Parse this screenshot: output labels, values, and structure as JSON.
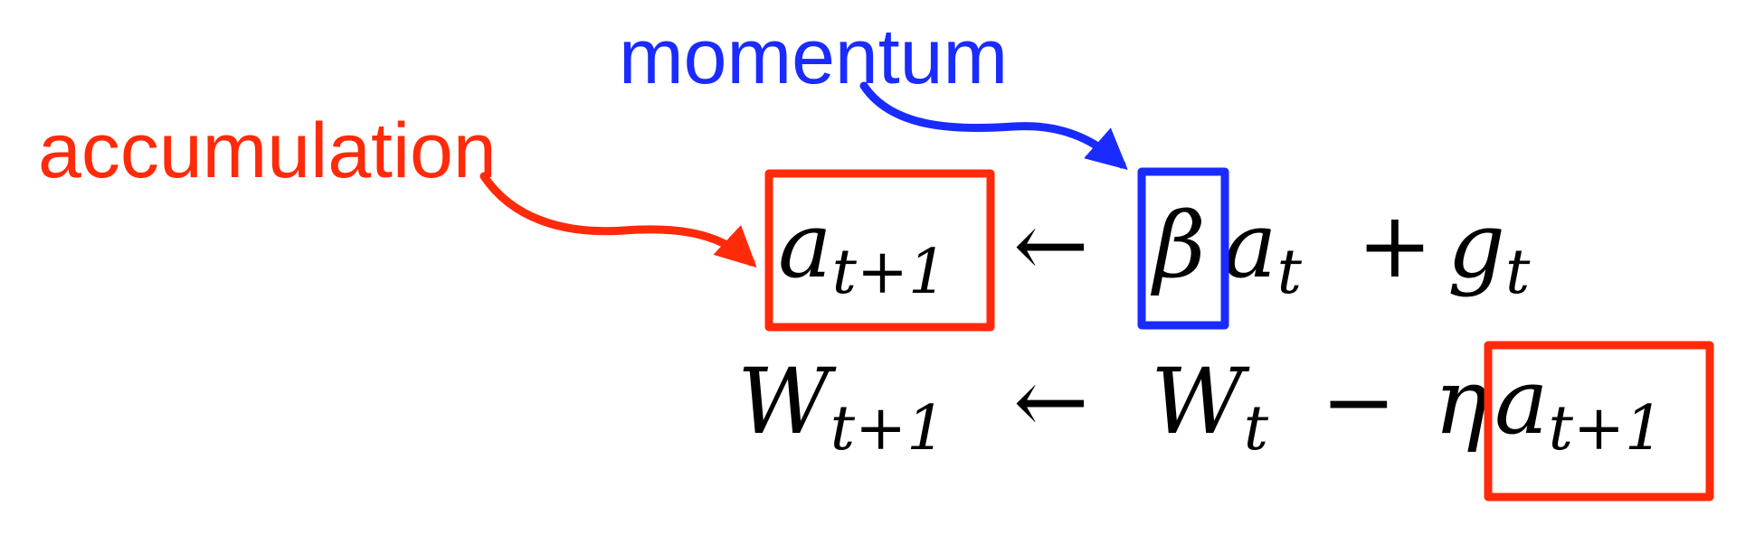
{
  "annotations": {
    "accumulation": {
      "text": "accumulation",
      "color": "#ff2a0a"
    },
    "momentum": {
      "text": "momentum",
      "color": "#1a2bff"
    }
  },
  "equation1": {
    "lhs_var": "a",
    "lhs_sub": "t+1",
    "arrow": "←",
    "coef": "β",
    "term1_var": "a",
    "term1_sub": "t",
    "plus": "+",
    "term2_var": "g",
    "term2_sub": "t"
  },
  "equation2": {
    "lhs_var": "W",
    "lhs_sub": "t+1",
    "arrow": "←",
    "rhs1_var": "W",
    "rhs1_sub": "t",
    "minus": "−",
    "rate": "η",
    "rhs2_var": "a",
    "rhs2_sub": "t+1"
  },
  "colors": {
    "accumulation": "#ff2a0a",
    "momentum": "#1a2bff",
    "text": "#000000"
  }
}
